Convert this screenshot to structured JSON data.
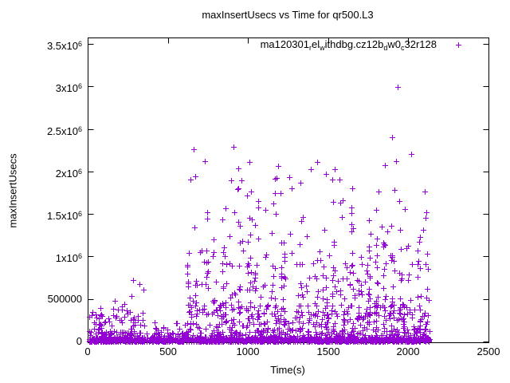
{
  "title": "maxInsertUsecs vs Time for qr500.L3",
  "legend": {
    "label": "ma120301_rel_withdbg.cz12b_dw0_c32r128",
    "marker": "+"
  },
  "axes": {
    "x": {
      "label": "Time(s)",
      "min": 0,
      "max": 2500,
      "ticks": [
        {
          "v": 0,
          "label": "0"
        },
        {
          "v": 500,
          "label": "500"
        },
        {
          "v": 1000,
          "label": "1000"
        },
        {
          "v": 1500,
          "label": "1500"
        },
        {
          "v": 2000,
          "label": "2000"
        },
        {
          "v": 2500,
          "label": "2500"
        }
      ]
    },
    "y": {
      "label": "maxInsertUsecs",
      "min": 0,
      "max": 3574000,
      "ticks": [
        {
          "v": 0,
          "label": "0"
        },
        {
          "v": 500000,
          "label": "500000"
        },
        {
          "v": 1000000,
          "label": "1x10^6"
        },
        {
          "v": 1500000,
          "label": "1.5x10^6"
        },
        {
          "v": 2000000,
          "label": "2x10^6"
        },
        {
          "v": 2500000,
          "label": "2.5x10^6"
        },
        {
          "v": 3000000,
          "label": "3x10^6"
        },
        {
          "v": 3500000,
          "label": "3.5x10^6"
        }
      ]
    }
  },
  "colors": {
    "background": "#ffffff",
    "axis": "#000000",
    "text": "#000000"
  },
  "chart_data": {
    "type": "scatter",
    "title": "maxInsertUsecs vs Time for qr500.L3",
    "xlabel": "Time(s)",
    "ylabel": "maxInsertUsecs",
    "xlim": [
      0,
      2500
    ],
    "ylim": [
      0,
      3574000
    ],
    "grid": false,
    "legend_position": "top-right-inside",
    "series": [
      {
        "name": "ma120301_rel_withdbg.cz12b_dw0_c32r128",
        "color": "#9400D3",
        "marker": "plus",
        "x_data_extent": [
          0,
          2130
        ],
        "description": "dense band near 0, tall noisy spikes from t=620 to t=2130, peak outlier ~3.0e6 at t~1930"
      }
    ],
    "seed": 1203,
    "streaks": {
      "start": 634,
      "step": 53,
      "jitter": 16,
      "count": 29
    },
    "clusters": [
      {
        "name": "bottom-dense",
        "count": 1150,
        "x": [
          3,
          2130
        ],
        "y": [
          1000,
          48000
        ],
        "ybias": 1.7,
        "streaks": false
      },
      {
        "name": "bottom-mid",
        "count": 240,
        "x": [
          3,
          2130
        ],
        "y": [
          45000,
          115000
        ],
        "ybias": 1.4,
        "streaks": false
      },
      {
        "name": "left-scatter",
        "count": 68,
        "x": [
          5,
          355
        ],
        "y": [
          100000,
          460000
        ],
        "ybias": 1.5,
        "streaks": false
      },
      {
        "name": "left-sparse",
        "count": 12,
        "x": [
          355,
          620
        ],
        "y": [
          95000,
          230000
        ],
        "ybias": 1.2,
        "streaks": false
      },
      {
        "name": "main-low",
        "count": 340,
        "x": [
          622,
          2130
        ],
        "y": [
          110000,
          430000
        ],
        "ybias": 1.15,
        "streaks": true,
        "spread": 0.45
      },
      {
        "name": "main-mid",
        "count": 205,
        "x": [
          622,
          2130
        ],
        "y": [
          400000,
          950000
        ],
        "ybias": 1.25,
        "streaks": true,
        "spread": 0.3
      },
      {
        "name": "main-high",
        "count": 95,
        "x": [
          630,
          2125
        ],
        "y": [
          900000,
          1520000
        ],
        "ybias": 1.2,
        "streaks": true,
        "spread": 0.25
      },
      {
        "name": "main-vhigh",
        "count": 30,
        "x": [
          640,
          2120
        ],
        "y": [
          1500000,
          1920000
        ],
        "ybias": 1.1,
        "streaks": true,
        "spread": 0.3
      },
      {
        "name": "main-top",
        "count": 4,
        "x": [
          700,
          2100
        ],
        "y": [
          1900000,
          2050000
        ],
        "ybias": 1.0,
        "streaks": false
      }
    ],
    "outliers": [
      [
        1932,
        2990000
      ],
      [
        1897,
        2400000
      ],
      [
        908,
        2290000
      ],
      [
        661,
        2260000
      ],
      [
        729,
        2120000
      ],
      [
        1010,
        2110000
      ],
      [
        1188,
        2060000
      ],
      [
        1392,
        2030000
      ],
      [
        1432,
        2110000
      ],
      [
        1541,
        2030000
      ],
      [
        1571,
        1900000
      ],
      [
        1856,
        2070000
      ],
      [
        1925,
        2120000
      ],
      [
        2018,
        2200000
      ],
      [
        671,
        1940000
      ],
      [
        282,
        722000
      ],
      [
        323,
        675000
      ],
      [
        348,
        613000
      ],
      [
        275,
        536000
      ],
      [
        171,
        483000
      ]
    ]
  }
}
